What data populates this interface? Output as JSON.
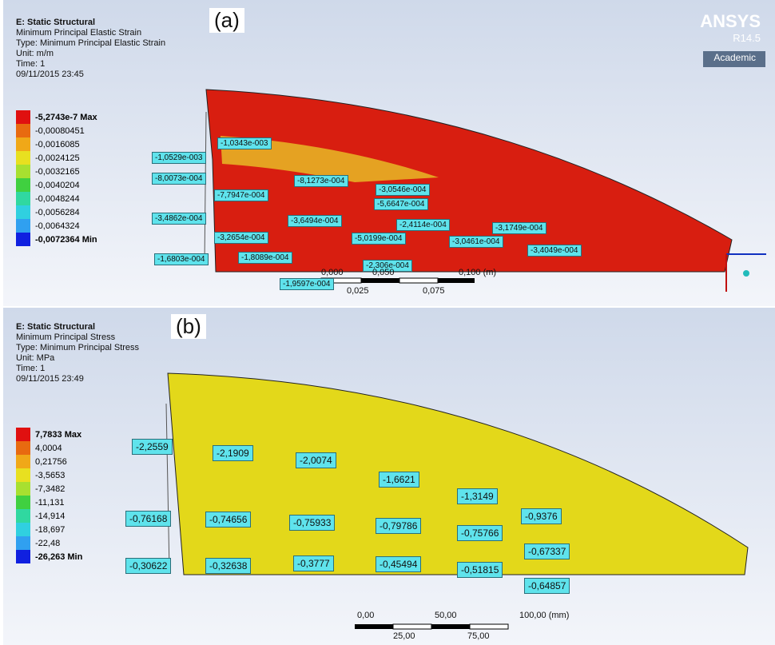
{
  "brand": {
    "name": "ANSYS",
    "version": "R14.5",
    "edition": "Academic"
  },
  "panels": [
    {
      "tag": "(a)",
      "header": [
        "E: Static Structural",
        "Minimum Principal Elastic Strain",
        "Type: Minimum Principal Elastic Strain",
        "Unit: m/m",
        "Time: 1",
        "09/11/2015 23:45"
      ],
      "legend": [
        "-5,2743e-7 Max",
        "-0,00080451",
        "-0,0016085",
        "-0,0024125",
        "-0,0032165",
        "-0,0040204",
        "-0,0048244",
        "-0,0056284",
        "-0,0064324",
        "-0,0072364 Min"
      ],
      "probes": [
        "-1,0343e-003",
        "-1,0529e-003",
        "-8,0073e-004",
        "-8,1273e-004",
        "-7,7947e-004",
        "-3,0546e-004",
        "-5,6647e-004",
        "-3,4862e-004",
        "-3,6494e-004",
        "-2,4114e-004",
        "-3,1749e-004",
        "-3,2654e-004",
        "-5,0199e-004",
        "-3,0461e-004",
        "-3,4049e-004",
        "-1,6803e-004",
        "-1,8089e-004",
        "-2,306e-004",
        "-1,9597e-004"
      ],
      "scale": [
        "0,000",
        "0,050",
        "0,100 (m)",
        "0,025",
        "0,075"
      ]
    },
    {
      "tag": "(b)",
      "header": [
        "E: Static Structural",
        "Minimum Principal Stress",
        "Type: Minimum Principal Stress",
        "Unit: MPa",
        "Time: 1",
        "09/11/2015 23:49"
      ],
      "legend": [
        "7,7833 Max",
        "4,0004",
        "0,21756",
        "-3,5653",
        "-7,3482",
        "-11,131",
        "-14,914",
        "-18,697",
        "-22,48",
        "-26,263 Min"
      ],
      "probes": [
        "-2,2559",
        "-2,1909",
        "-2,0074",
        "-1,6621",
        "-1,3149",
        "-0,76168",
        "-0,74656",
        "-0,75933",
        "-0,79786",
        "-0,9376",
        "-0,75766",
        "-0,67337",
        "-0,30622",
        "-0,32638",
        "-0,3777",
        "-0,45494",
        "-0,51815",
        "-0,64857"
      ],
      "scale": [
        "0,00",
        "50,00",
        "100,00 (mm)",
        "25,00",
        "75,00"
      ]
    }
  ]
}
